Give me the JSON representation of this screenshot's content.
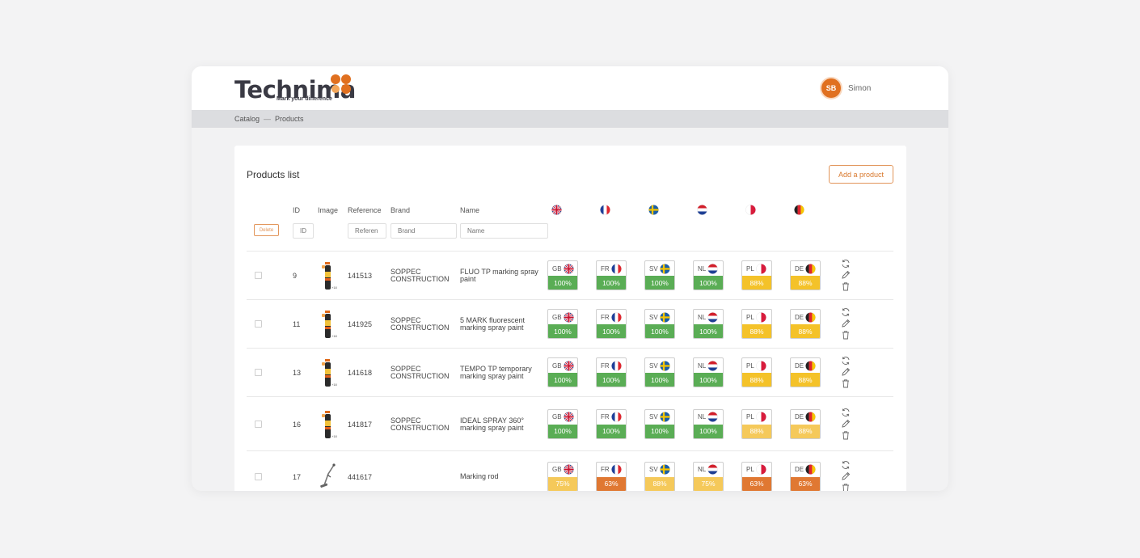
{
  "app": {
    "logo_text": "Technima",
    "logo_tagline": "Mark your difference",
    "user_initials": "SB",
    "user_name": "Simon"
  },
  "breadcrumb": [
    "Catalog",
    "Products"
  ],
  "breadcrumb_sep": "—",
  "panel": {
    "title": "Products list",
    "add_label": "Add a product"
  },
  "columns": {
    "id": "ID",
    "image": "Image",
    "reference": "Reference",
    "brand": "Brand",
    "name": "Name"
  },
  "filters": {
    "delete_label": "Delete",
    "id_placeholder": "ID",
    "reference_placeholder": "Referen",
    "brand_placeholder": "Brand",
    "name_placeholder": "Name"
  },
  "languages": [
    {
      "code": "GB",
      "flag": "flag-uk"
    },
    {
      "code": "FR",
      "flag": "flag-fr"
    },
    {
      "code": "SV",
      "flag": "flag-se"
    },
    {
      "code": "NL",
      "flag": "flag-nl"
    },
    {
      "code": "PL",
      "flag": "flag-pl"
    },
    {
      "code": "DE",
      "flag": "flag-de"
    }
  ],
  "colors": {
    "green": "#5aad55",
    "yellow": "#f4c229",
    "yellow_light": "#f5c95a",
    "orange": "#e07832",
    "accent": "#e07020"
  },
  "rows": [
    {
      "id": "9",
      "reference": "141513",
      "brand": [
        "SOPPEC",
        "CONSTRUCTION"
      ],
      "name": [
        "FLUO TP marking spray",
        "paint"
      ],
      "image": "spray-can",
      "completion": [
        {
          "value": "100%",
          "color": "green"
        },
        {
          "value": "100%",
          "color": "green"
        },
        {
          "value": "100%",
          "color": "green"
        },
        {
          "value": "100%",
          "color": "green"
        },
        {
          "value": "88%",
          "color": "yellow"
        },
        {
          "value": "88%",
          "color": "yellow"
        }
      ]
    },
    {
      "id": "11",
      "reference": "141925",
      "brand": [
        "SOPPEC",
        "CONSTRUCTION"
      ],
      "name": [
        "5 MARK fluorescent",
        "marking spray paint"
      ],
      "image": "spray-can",
      "completion": [
        {
          "value": "100%",
          "color": "green"
        },
        {
          "value": "100%",
          "color": "green"
        },
        {
          "value": "100%",
          "color": "green"
        },
        {
          "value": "100%",
          "color": "green"
        },
        {
          "value": "88%",
          "color": "yellow"
        },
        {
          "value": "88%",
          "color": "yellow"
        }
      ]
    },
    {
      "id": "13",
      "reference": "141618",
      "brand": [
        "SOPPEC",
        "CONSTRUCTION"
      ],
      "name": [
        "TEMPO TP temporary",
        "marking spray paint"
      ],
      "image": "spray-can",
      "completion": [
        {
          "value": "100%",
          "color": "green"
        },
        {
          "value": "100%",
          "color": "green"
        },
        {
          "value": "100%",
          "color": "green"
        },
        {
          "value": "100%",
          "color": "green"
        },
        {
          "value": "88%",
          "color": "yellow"
        },
        {
          "value": "88%",
          "color": "yellow"
        }
      ]
    },
    {
      "id": "16",
      "reference": "141817",
      "brand": [
        "SOPPEC",
        "CONSTRUCTION"
      ],
      "name": [
        "IDEAL SPRAY 360°",
        "marking spray paint"
      ],
      "image": "spray-can",
      "completion": [
        {
          "value": "100%",
          "color": "green"
        },
        {
          "value": "100%",
          "color": "green"
        },
        {
          "value": "100%",
          "color": "green"
        },
        {
          "value": "100%",
          "color": "green"
        },
        {
          "value": "88%",
          "color": "yellow_light"
        },
        {
          "value": "88%",
          "color": "yellow_light"
        }
      ]
    },
    {
      "id": "17",
      "reference": "441617",
      "brand": [
        "",
        ""
      ],
      "name": [
        "Marking rod",
        ""
      ],
      "image": "marking-rod",
      "completion": [
        {
          "value": "75%",
          "color": "yellow_light"
        },
        {
          "value": "63%",
          "color": "orange"
        },
        {
          "value": "88%",
          "color": "yellow_light"
        },
        {
          "value": "75%",
          "color": "yellow_light"
        },
        {
          "value": "63%",
          "color": "orange"
        },
        {
          "value": "63%",
          "color": "orange"
        }
      ]
    }
  ]
}
